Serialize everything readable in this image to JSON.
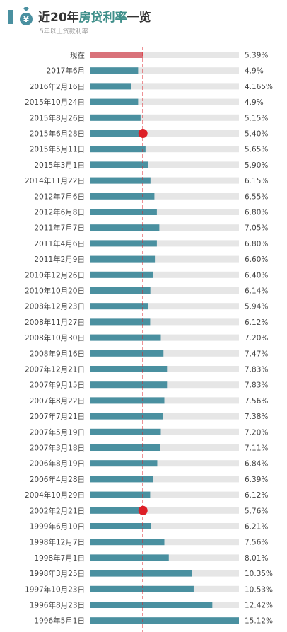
{
  "header": {
    "title_part1": "近20年",
    "title_part2": "房贷利率",
    "title_part3": "一览",
    "subtitle": "5年以上贷款利率"
  },
  "colors": {
    "bar": "#4a90a0",
    "current_bar": "#d9727a",
    "track": "#e6e6e6",
    "marker": "#dd1f26",
    "label": "#444444",
    "accent": "#3f8f8a"
  },
  "chart_data": {
    "type": "bar",
    "orientation": "horizontal",
    "xlim": [
      0,
      15.12
    ],
    "reference_line_value": 5.39,
    "marked_categories": [
      "2015年6月28日",
      "2002年2月21日"
    ],
    "categories": [
      "现在",
      "2017年6月",
      "2016年2月16日",
      "2015年10月24日",
      "2015年8月26日",
      "2015年6月28日",
      "2015年5月11日",
      "2015年3月1日",
      "2014年11月22日",
      "2012年7月6日",
      "2012年6月8日",
      "2011年7月7日",
      "2011年4月6日",
      "2011年2月9日",
      "2010年12月26日",
      "2010年10月20日",
      "2008年12月23日",
      "2008年11月27日",
      "2008年10月30日",
      "2008年9月16日",
      "2007年12月21日",
      "2007年9月15日",
      "2007年8月22日",
      "2007年7月21日",
      "2007年5月19日",
      "2007年3月18日",
      "2006年8月19日",
      "2006年4月28日",
      "2004年10月29日",
      "2002年2月21日",
      "1999年6月10日",
      "1998年12月7日",
      "1998年7月1日",
      "1998年3月25日",
      "1997年10月23日",
      "1996年8月23日",
      "1996年5月1日"
    ],
    "values": [
      5.39,
      4.9,
      4.165,
      4.9,
      5.15,
      5.4,
      5.65,
      5.9,
      6.15,
      6.55,
      6.8,
      7.05,
      6.8,
      6.6,
      6.4,
      6.14,
      5.94,
      6.12,
      7.2,
      7.47,
      7.83,
      7.83,
      7.56,
      7.38,
      7.2,
      7.11,
      6.84,
      6.39,
      6.12,
      5.76,
      6.21,
      7.56,
      8.01,
      10.35,
      10.53,
      12.42,
      15.12
    ],
    "value_labels": [
      "5.39%",
      "4.9%",
      "4.165%",
      "4.9%",
      "5.15%",
      "5.40%",
      "5.65%",
      "5.90%",
      "6.15%",
      "6.55%",
      "6.80%",
      "7.05%",
      "6.80%",
      "6.60%",
      "6.40%",
      "6.14%",
      "5.94%",
      "6.12%",
      "7.20%",
      "7.47%",
      "7.83%",
      "7.83%",
      "7.56%",
      "7.38%",
      "7.20%",
      "7.11%",
      "6.84%",
      "6.39%",
      "6.12%",
      "5.76%",
      "6.21%",
      "7.56%",
      "8.01%",
      "10.35%",
      "10.53%",
      "12.42%",
      "15.12%"
    ]
  }
}
